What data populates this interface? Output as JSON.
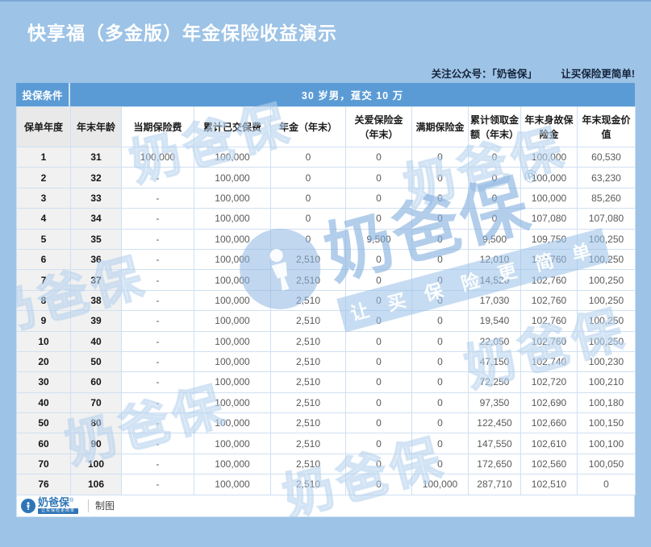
{
  "page": {
    "title": "快享福（多金版）年金保险收益演示",
    "note": "关注公众号：「奶爸保」",
    "slogan": "让买保险更简单!"
  },
  "table": {
    "condition_label": "投保条件",
    "condition_value": "30 岁男，趸交 10 万",
    "columns": [
      "保单年度",
      "年末年龄",
      "当期保险费",
      "累计已交保费",
      "年金（年末）",
      "关爱保险金\n（年末）",
      "满期保险金",
      "累计领取金\n额（年末）",
      "年末身故保\n险金",
      "年末现金价\n值"
    ],
    "rows": [
      [
        "1",
        "31",
        "100,000",
        "100,000",
        "0",
        "0",
        "0",
        "0",
        "100,000",
        "60,530"
      ],
      [
        "2",
        "32",
        "-",
        "100,000",
        "0",
        "0",
        "0",
        "0",
        "100,000",
        "63,230"
      ],
      [
        "3",
        "33",
        "-",
        "100,000",
        "0",
        "0",
        "0",
        "0",
        "100,000",
        "85,260"
      ],
      [
        "4",
        "34",
        "-",
        "100,000",
        "0",
        "0",
        "0",
        "0",
        "107,080",
        "107,080"
      ],
      [
        "5",
        "35",
        "-",
        "100,000",
        "0",
        "9,500",
        "0",
        "9,500",
        "109,750",
        "100,250"
      ],
      [
        "6",
        "36",
        "-",
        "100,000",
        "2,510",
        "0",
        "0",
        "12,010",
        "102,760",
        "100,250"
      ],
      [
        "7",
        "37",
        "-",
        "100,000",
        "2,510",
        "0",
        "0",
        "14,520",
        "102,760",
        "100,250"
      ],
      [
        "8",
        "38",
        "-",
        "100,000",
        "2,510",
        "0",
        "0",
        "17,030",
        "102,760",
        "100,250"
      ],
      [
        "9",
        "39",
        "-",
        "100,000",
        "2,510",
        "0",
        "0",
        "19,540",
        "102,760",
        "100,250"
      ],
      [
        "10",
        "40",
        "-",
        "100,000",
        "2,510",
        "0",
        "0",
        "22,050",
        "102,760",
        "100,250"
      ],
      [
        "20",
        "50",
        "-",
        "100,000",
        "2,510",
        "0",
        "0",
        "47,150",
        "102,740",
        "100,230"
      ],
      [
        "30",
        "60",
        "-",
        "100,000",
        "2,510",
        "0",
        "0",
        "72,250",
        "102,720",
        "100,210"
      ],
      [
        "40",
        "70",
        "-",
        "100,000",
        "2,510",
        "0",
        "0",
        "97,350",
        "102,690",
        "100,180"
      ],
      [
        "50",
        "80",
        "-",
        "100,000",
        "2,510",
        "0",
        "0",
        "122,450",
        "102,660",
        "100,150"
      ],
      [
        "60",
        "90",
        "-",
        "100,000",
        "2,510",
        "0",
        "0",
        "147,550",
        "102,610",
        "100,100"
      ],
      [
        "70",
        "100",
        "-",
        "100,000",
        "2,510",
        "0",
        "0",
        "172,650",
        "102,560",
        "100,050"
      ],
      [
        "76",
        "106",
        "-",
        "100,000",
        "2,510",
        "0",
        "100,000",
        "287,710",
        "102,510",
        "0"
      ]
    ]
  },
  "footer": {
    "brand": "奶爸保",
    "reg": "®",
    "tagline": "让买保险更简单",
    "caption": "制图"
  },
  "watermark": {
    "brand": "奶爸保",
    "reg": "®",
    "slogan": "让 买 保 险 更 简 单"
  },
  "colors": {
    "background": "#9dc3e6",
    "header_blue": "#5b9bd5",
    "brand_blue": "#2e75b6",
    "grid_line": "#cfe0f2",
    "row_head_gray": "#f1f1f1",
    "number_text": "#595959"
  },
  "chart_data": {
    "type": "table",
    "title": "快享福（多金版）年金保险收益演示",
    "condition_label": "投保条件",
    "condition": "30 岁男，趸交 10 万",
    "columns": [
      "保单年度",
      "年末年龄",
      "当期保险费",
      "累计已交保费",
      "年金（年末）",
      "关爱保险金（年末）",
      "满期保险金",
      "累计领取金额（年末）",
      "年末身故保险金",
      "年末现金价值"
    ],
    "rows": [
      [
        1,
        31,
        "100,000",
        "100,000",
        0,
        0,
        0,
        0,
        100000,
        60530
      ],
      [
        2,
        32,
        null,
        "100,000",
        0,
        0,
        0,
        0,
        100000,
        63230
      ],
      [
        3,
        33,
        null,
        "100,000",
        0,
        0,
        0,
        0,
        100000,
        85260
      ],
      [
        4,
        34,
        null,
        "100,000",
        0,
        0,
        0,
        0,
        107080,
        107080
      ],
      [
        5,
        35,
        null,
        "100,000",
        0,
        9500,
        0,
        9500,
        109750,
        100250
      ],
      [
        6,
        36,
        null,
        "100,000",
        2510,
        0,
        0,
        12010,
        102760,
        100250
      ],
      [
        7,
        37,
        null,
        "100,000",
        2510,
        0,
        0,
        14520,
        102760,
        100250
      ],
      [
        8,
        38,
        null,
        "100,000",
        2510,
        0,
        0,
        17030,
        102760,
        100250
      ],
      [
        9,
        39,
        null,
        "100,000",
        2510,
        0,
        0,
        19540,
        102760,
        100250
      ],
      [
        10,
        40,
        null,
        "100,000",
        2510,
        0,
        0,
        22050,
        102760,
        100250
      ],
      [
        20,
        50,
        null,
        "100,000",
        2510,
        0,
        0,
        47150,
        102740,
        100230
      ],
      [
        30,
        60,
        null,
        "100,000",
        2510,
        0,
        0,
        72250,
        102720,
        100210
      ],
      [
        40,
        70,
        null,
        "100,000",
        2510,
        0,
        0,
        97350,
        102690,
        100180
      ],
      [
        50,
        80,
        null,
        "100,000",
        2510,
        0,
        0,
        122450,
        102660,
        100150
      ],
      [
        60,
        90,
        null,
        "100,000",
        2510,
        0,
        0,
        147550,
        102610,
        100100
      ],
      [
        70,
        100,
        null,
        "100,000",
        2510,
        0,
        0,
        172650,
        102560,
        100050
      ],
      [
        76,
        106,
        null,
        "100,000",
        2510,
        0,
        100000,
        287710,
        102510,
        0
      ]
    ]
  }
}
